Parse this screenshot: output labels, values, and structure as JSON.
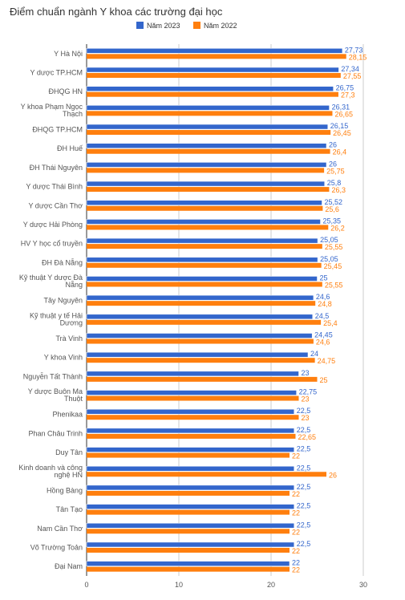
{
  "chart_data": {
    "type": "bar",
    "orientation": "horizontal",
    "title": "Điểm chuẩn ngành Y khoa các trường đại học",
    "legend_position": "top",
    "grid": true,
    "xlim": [
      0,
      30
    ],
    "x_ticks": [
      "0",
      "10",
      "20",
      "30"
    ],
    "categories": [
      [
        "Y Hà Nội"
      ],
      [
        "Y dược TP.HCM"
      ],
      [
        "ĐHQG HN"
      ],
      [
        "Y khoa Phạm Ngọc",
        "Thạch"
      ],
      [
        "ĐHQG TP.HCM"
      ],
      [
        "ĐH Huế"
      ],
      [
        "ĐH Thái Nguyên"
      ],
      [
        "Y dược Thái Bình"
      ],
      [
        "Y dược Cần Thơ"
      ],
      [
        "Y dược Hải Phòng"
      ],
      [
        "HV Y học cổ truyền"
      ],
      [
        "ĐH Đà Nẵng"
      ],
      [
        "Kỹ thuật Y dược Đà",
        "Nẵng"
      ],
      [
        "Tây Nguyên"
      ],
      [
        "Kỹ thuật y tế Hải",
        "Dương"
      ],
      [
        "Trà Vinh"
      ],
      [
        "Y khoa Vinh"
      ],
      [
        "Nguyễn Tất Thành"
      ],
      [
        "Y dược Buôn Ma",
        "Thuột"
      ],
      [
        "Phenikaa"
      ],
      [
        "Phan Châu Trinh"
      ],
      [
        "Duy Tân"
      ],
      [
        "Kinh doanh và công",
        "nghệ HN"
      ],
      [
        "Hồng Bàng"
      ],
      [
        "Tân Tạo"
      ],
      [
        "Nam Cần Thơ"
      ],
      [
        "Võ Trường Toản"
      ],
      [
        "Đại Nam"
      ]
    ],
    "series": [
      {
        "name": "Năm 2023",
        "color": "#3366cc",
        "values": [
          27.73,
          27.34,
          26.75,
          26.31,
          26.15,
          26,
          26,
          25.8,
          25.52,
          25.35,
          25.05,
          25.05,
          25,
          24.6,
          24.5,
          24.45,
          24,
          23,
          22.75,
          22.5,
          22.5,
          22.5,
          22.5,
          22.5,
          22.5,
          22.5,
          22.5,
          22
        ],
        "labels": [
          "27,73",
          "27,34",
          "26,75",
          "26,31",
          "26,15",
          "26",
          "26",
          "25,8",
          "25,52",
          "25,35",
          "25,05",
          "25,05",
          "25",
          "24,6",
          "24,5",
          "24,45",
          "24",
          "23",
          "22,75",
          "22,5",
          "22,5",
          "22,5",
          "22,5",
          "22,5",
          "22,5",
          "22,5",
          "22,5",
          "22"
        ]
      },
      {
        "name": "Năm 2022",
        "color": "#ff7f0e",
        "values": [
          28.15,
          27.55,
          27.3,
          26.65,
          26.45,
          26.4,
          25.75,
          26.3,
          25.6,
          26.2,
          25.55,
          25.45,
          25.55,
          24.8,
          25.4,
          24.6,
          24.75,
          25,
          23,
          23,
          22.65,
          22,
          26,
          22,
          22,
          22,
          22,
          22
        ],
        "labels": [
          "28,15",
          "27,55",
          "27,3",
          "26,65",
          "26,45",
          "26,4",
          "25,75",
          "26,3",
          "25,6",
          "26,2",
          "25,55",
          "25,45",
          "25,55",
          "24,8",
          "25,4",
          "24,6",
          "24,75",
          "25",
          "23",
          "23",
          "22,65",
          "22",
          "26",
          "22",
          "22",
          "22",
          "22",
          "22"
        ]
      }
    ]
  }
}
